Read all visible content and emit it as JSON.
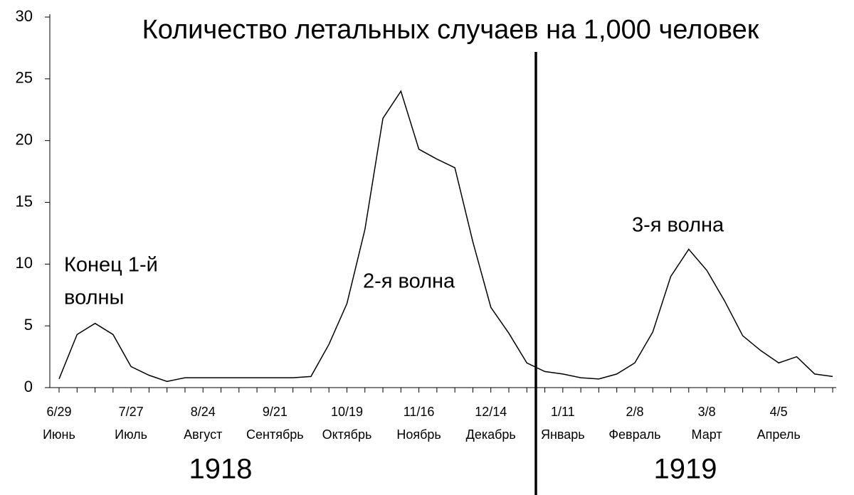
{
  "chart_data": {
    "type": "line",
    "title": "Количество летальных случаев на 1,000 человек",
    "categories": [
      "6/29",
      null,
      null,
      null,
      "7/27",
      null,
      null,
      null,
      "8/24",
      null,
      null,
      null,
      "9/21",
      null,
      null,
      null,
      "10/19",
      null,
      null,
      null,
      "11/16",
      null,
      null,
      null,
      "12/14",
      null,
      null,
      null,
      "1/11",
      null,
      null,
      null,
      "2/8",
      null,
      null,
      null,
      "3/8",
      null,
      null,
      null,
      "4/5",
      null,
      null,
      null
    ],
    "months": [
      "Июнь",
      null,
      null,
      null,
      "Июль",
      null,
      null,
      null,
      "Август",
      null,
      null,
      null,
      "Сентябрь",
      null,
      null,
      null,
      "Октябрь",
      null,
      null,
      null,
      "Ноябрь",
      null,
      null,
      null,
      "Декабрь",
      null,
      null,
      null,
      "Январь",
      null,
      null,
      null,
      "Февраль",
      null,
      null,
      null,
      "Март",
      null,
      null,
      null,
      "Апрель",
      null,
      null,
      null
    ],
    "years": [
      "1918",
      "1919"
    ],
    "series": [
      {
        "color": "#000000",
        "values": [
          0.7,
          4.3,
          5.2,
          4.3,
          1.7,
          1.0,
          0.5,
          0.8,
          0.8,
          0.8,
          0.8,
          0.8,
          0.8,
          0.8,
          0.9,
          3.5,
          6.8,
          12.8,
          21.8,
          24.0,
          19.3,
          18.5,
          17.8,
          11.8,
          6.5,
          4.4,
          2.0,
          1.3,
          1.1,
          0.8,
          0.7,
          1.1,
          2.0,
          4.5,
          9.0,
          11.2,
          9.5,
          7.0,
          4.2,
          3.0,
          2.0,
          2.5,
          1.1,
          0.9
        ]
      }
    ],
    "annotations": [
      "Конец 1-й",
      "волны",
      "2-я волна",
      "3-я волна"
    ],
    "ylim": [
      0,
      30
    ],
    "yticks": [
      0,
      5,
      10,
      15,
      20,
      25,
      30
    ],
    "grid": false
  }
}
